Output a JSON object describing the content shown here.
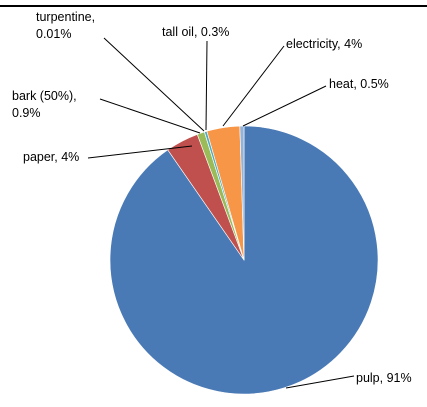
{
  "chart_data": {
    "type": "pie",
    "title": "",
    "categories": [
      "pulp",
      "paper",
      "bark (50%)",
      "turpentine",
      "tall oil",
      "electricity",
      "heat"
    ],
    "values": [
      91,
      4,
      0.9,
      0.01,
      0.3,
      4,
      0.5
    ],
    "data_labels": [
      "pulp, 91%",
      "paper, 4%",
      "bark (50%),\n0.9%",
      "turpentine,\n0.01%",
      "tall oil, 0.3%",
      "electricity, 4%",
      "heat, 0.5%"
    ],
    "colors": [
      "#4a7ab5",
      "#c0504d",
      "#9bbb59",
      "#8064a2",
      "#4bacc6",
      "#f79646",
      "#95b3d7"
    ],
    "legend": "none",
    "start_angle_degrees": 0,
    "direction": "clockwise"
  }
}
